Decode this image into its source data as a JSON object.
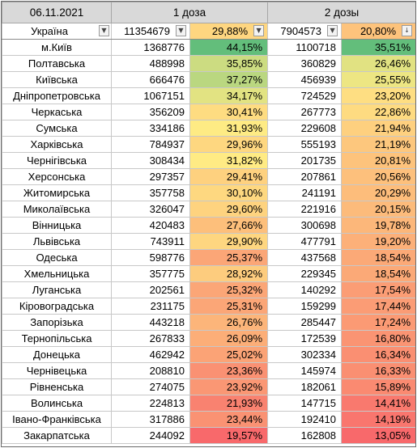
{
  "header": {
    "date": "06.11.2021",
    "dose1": "1 доза",
    "dose2": "2 дозы"
  },
  "total": {
    "region": "Україна",
    "d1": "11354679",
    "p1": "29,88%",
    "d2": "7904573",
    "p2": "20,80%",
    "p1_value": 29.88,
    "p2_value": 20.8
  },
  "filter_icons": {
    "region": "chevron-down-icon",
    "d1": "chevron-down-icon",
    "p1": "chevron-down-icon",
    "d2": "chevron-down-icon",
    "p2": "sort-desc-icon"
  },
  "color_scale": {
    "low": "#f8696b",
    "mid": "#ffeb84",
    "high": "#63be7b"
  },
  "rows": [
    {
      "region": "м.Київ",
      "d1": "1368776",
      "p1": "44,15%",
      "d2": "1100718",
      "p2": "35,51%",
      "p1_value": 44.15,
      "p2_value": 35.51
    },
    {
      "region": "Полтавська",
      "d1": "488998",
      "p1": "35,85%",
      "d2": "360829",
      "p2": "26,46%",
      "p1_value": 35.85,
      "p2_value": 26.46
    },
    {
      "region": "Київська",
      "d1": "666476",
      "p1": "37,27%",
      "d2": "456939",
      "p2": "25,55%",
      "p1_value": 37.27,
      "p2_value": 25.55
    },
    {
      "region": "Дніпропетровська",
      "d1": "1067151",
      "p1": "34,17%",
      "d2": "724529",
      "p2": "23,20%",
      "p1_value": 34.17,
      "p2_value": 23.2
    },
    {
      "region": "Черкаська",
      "d1": "356209",
      "p1": "30,41%",
      "d2": "267773",
      "p2": "22,86%",
      "p1_value": 30.41,
      "p2_value": 22.86
    },
    {
      "region": "Сумська",
      "d1": "334186",
      "p1": "31,93%",
      "d2": "229608",
      "p2": "21,94%",
      "p1_value": 31.93,
      "p2_value": 21.94
    },
    {
      "region": "Харківська",
      "d1": "784937",
      "p1": "29,96%",
      "d2": "555193",
      "p2": "21,19%",
      "p1_value": 29.96,
      "p2_value": 21.19
    },
    {
      "region": "Чернігівська",
      "d1": "308434",
      "p1": "31,82%",
      "d2": "201735",
      "p2": "20,81%",
      "p1_value": 31.82,
      "p2_value": 20.81
    },
    {
      "region": "Херсонська",
      "d1": "297357",
      "p1": "29,41%",
      "d2": "207861",
      "p2": "20,56%",
      "p1_value": 29.41,
      "p2_value": 20.56
    },
    {
      "region": "Житомирська",
      "d1": "357758",
      "p1": "30,10%",
      "d2": "241191",
      "p2": "20,29%",
      "p1_value": 30.1,
      "p2_value": 20.29
    },
    {
      "region": "Миколаївська",
      "d1": "326047",
      "p1": "29,60%",
      "d2": "221916",
      "p2": "20,15%",
      "p1_value": 29.6,
      "p2_value": 20.15
    },
    {
      "region": "Вінницька",
      "d1": "420483",
      "p1": "27,66%",
      "d2": "300698",
      "p2": "19,78%",
      "p1_value": 27.66,
      "p2_value": 19.78
    },
    {
      "region": "Львівська",
      "d1": "743911",
      "p1": "29,90%",
      "d2": "477791",
      "p2": "19,20%",
      "p1_value": 29.9,
      "p2_value": 19.2
    },
    {
      "region": "Одеська",
      "d1": "598776",
      "p1": "25,37%",
      "d2": "437568",
      "p2": "18,54%",
      "p1_value": 25.37,
      "p2_value": 18.54
    },
    {
      "region": "Хмельницька",
      "d1": "357775",
      "p1": "28,92%",
      "d2": "229345",
      "p2": "18,54%",
      "p1_value": 28.92,
      "p2_value": 18.54
    },
    {
      "region": "Луганська",
      "d1": "202561",
      "p1": "25,32%",
      "d2": "140292",
      "p2": "17,54%",
      "p1_value": 25.32,
      "p2_value": 17.54
    },
    {
      "region": "Кіровоградська",
      "d1": "231175",
      "p1": "25,31%",
      "d2": "159299",
      "p2": "17,44%",
      "p1_value": 25.31,
      "p2_value": 17.44
    },
    {
      "region": "Запорізька",
      "d1": "443218",
      "p1": "26,76%",
      "d2": "285447",
      "p2": "17,24%",
      "p1_value": 26.76,
      "p2_value": 17.24
    },
    {
      "region": "Тернопільська",
      "d1": "267833",
      "p1": "26,09%",
      "d2": "172539",
      "p2": "16,80%",
      "p1_value": 26.09,
      "p2_value": 16.8
    },
    {
      "region": "Донецька",
      "d1": "462942",
      "p1": "25,02%",
      "d2": "302334",
      "p2": "16,34%",
      "p1_value": 25.02,
      "p2_value": 16.34
    },
    {
      "region": "Чернівецька",
      "d1": "208810",
      "p1": "23,36%",
      "d2": "145974",
      "p2": "16,33%",
      "p1_value": 23.36,
      "p2_value": 16.33
    },
    {
      "region": "Рівненська",
      "d1": "274075",
      "p1": "23,92%",
      "d2": "182061",
      "p2": "15,89%",
      "p1_value": 23.92,
      "p2_value": 15.89
    },
    {
      "region": "Волинська",
      "d1": "224813",
      "p1": "21,93%",
      "d2": "147715",
      "p2": "14,41%",
      "p1_value": 21.93,
      "p2_value": 14.41
    },
    {
      "region": "Івано-Франківська",
      "d1": "317886",
      "p1": "23,44%",
      "d2": "192410",
      "p2": "14,19%",
      "p1_value": 23.44,
      "p2_value": 14.19
    },
    {
      "region": "Закарпатська",
      "d1": "244092",
      "p1": "19,57%",
      "d2": "162808",
      "p2": "13,05%",
      "p1_value": 19.57,
      "p2_value": 13.05
    }
  ]
}
